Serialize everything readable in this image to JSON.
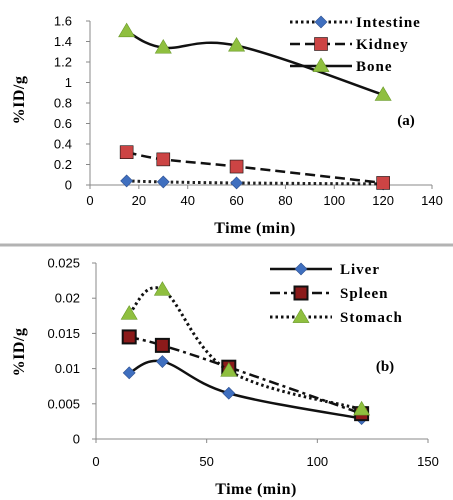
{
  "chart_data": [
    {
      "type": "line",
      "panel_label": "(a)",
      "xlabel": "Time (min)",
      "ylabel": "%ID/g",
      "xlim": [
        0,
        140
      ],
      "ylim": [
        0,
        1.6
      ],
      "xticks": [
        "0",
        "20",
        "40",
        "60",
        "80",
        "100",
        "120",
        "140"
      ],
      "yticks": [
        "0",
        "0.2",
        "0.4",
        "0.6",
        "0.8",
        "1",
        "1.2",
        "1.4",
        "1.6"
      ],
      "grid": false,
      "legend_position": "top-right",
      "series": [
        {
          "name": "Intestine",
          "marker": "diamond",
          "line": "dotted",
          "color": "#3f6fbf",
          "x": [
            15,
            30,
            60,
            120
          ],
          "y": [
            0.04,
            0.03,
            0.02,
            0.01
          ]
        },
        {
          "name": "Kidney",
          "marker": "square",
          "line": "dashed",
          "color": "#cc4444",
          "x": [
            15,
            30,
            60,
            120
          ],
          "y": [
            0.32,
            0.25,
            0.18,
            0.02
          ]
        },
        {
          "name": "Bone",
          "marker": "triangle",
          "line": "solid",
          "color": "#8fbf3f",
          "x": [
            15,
            30,
            60,
            120
          ],
          "y": [
            1.5,
            1.34,
            1.36,
            0.88
          ]
        }
      ]
    },
    {
      "type": "line",
      "panel_label": "(b)",
      "xlabel": "Time (min)",
      "ylabel": "%ID/g",
      "xlim": [
        0,
        150
      ],
      "ylim": [
        0,
        0.025
      ],
      "xticks": [
        "0",
        "50",
        "100",
        "150"
      ],
      "yticks": [
        "0",
        "0.005",
        "0.01",
        "0.015",
        "0.02",
        "0.025"
      ],
      "grid": false,
      "legend_position": "top-right",
      "series": [
        {
          "name": "Liver",
          "marker": "diamond",
          "line": "solid",
          "color": "#3f6fbf",
          "x": [
            15,
            30,
            60,
            120
          ],
          "y": [
            0.0094,
            0.011,
            0.0065,
            0.0029
          ]
        },
        {
          "name": "Spleen",
          "marker": "square",
          "line": "dashdot",
          "color": "#8b1a1a",
          "x": [
            15,
            30,
            60,
            120
          ],
          "y": [
            0.0145,
            0.0133,
            0.0102,
            0.0036
          ]
        },
        {
          "name": "Stomach",
          "marker": "triangle",
          "line": "dotted",
          "color": "#8fbf3f",
          "x": [
            15,
            30,
            60,
            120
          ],
          "y": [
            0.0178,
            0.0212,
            0.0097,
            0.0042
          ]
        }
      ]
    }
  ]
}
